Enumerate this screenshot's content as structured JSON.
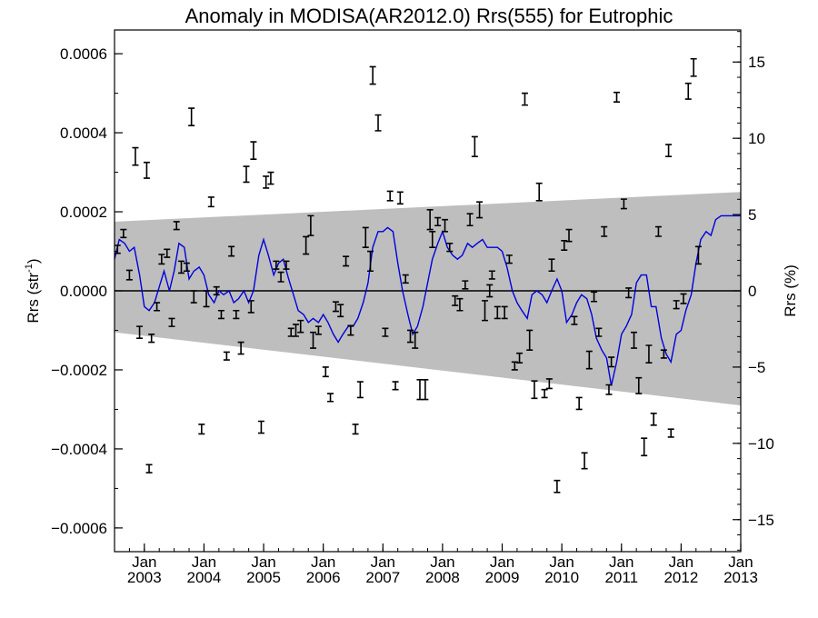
{
  "chart_data": {
    "type": "scatter",
    "title": "Anomaly in MODISA(AR2012.0) Rrs(555) for Eutrophic",
    "ylabel_left_base": "Rrs (str",
    "ylabel_left_sup": "-1",
    "ylabel_left_tail": ")",
    "ylabel_right": "Rrs (%)",
    "xlim": [
      2002.5,
      2013.0
    ],
    "ylim": [
      -0.00066,
      0.00066
    ],
    "ylim_right": [
      -17.1,
      17.1
    ],
    "grid": false,
    "legend": "none",
    "x_tick_labels": [
      {
        "top": "Jan",
        "bottom": "2003",
        "x": 2003.0
      },
      {
        "top": "Jan",
        "bottom": "2004",
        "x": 2004.0
      },
      {
        "top": "Jan",
        "bottom": "2005",
        "x": 2005.0
      },
      {
        "top": "Jan",
        "bottom": "2006",
        "x": 2006.0
      },
      {
        "top": "Jan",
        "bottom": "2007",
        "x": 2007.0
      },
      {
        "top": "Jan",
        "bottom": "2008",
        "x": 2008.0
      },
      {
        "top": "Jan",
        "bottom": "2009",
        "x": 2009.0
      },
      {
        "top": "Jan",
        "bottom": "2010",
        "x": 2010.0
      },
      {
        "top": "Jan",
        "bottom": "2011",
        "x": 2011.0
      },
      {
        "top": "Jan",
        "bottom": "2012",
        "x": 2012.0
      },
      {
        "top": "Jan",
        "bottom": "2013",
        "x": 2013.0
      }
    ],
    "y_tick_labels_left": [
      {
        "label": "0.0006",
        "v": 0.0006
      },
      {
        "label": "0.0004",
        "v": 0.0004
      },
      {
        "label": "0.0002",
        "v": 0.0002
      },
      {
        "label": "0.0000",
        "v": 0.0
      },
      {
        "label": "−0.0002",
        "v": -0.0002
      },
      {
        "label": "−0.0004",
        "v": -0.0004
      },
      {
        "label": "−0.0006",
        "v": -0.0006
      }
    ],
    "y_tick_labels_right": [
      {
        "label": "15",
        "v": 15
      },
      {
        "label": "10",
        "v": 10
      },
      {
        "label": "5",
        "v": 5
      },
      {
        "label": "0",
        "v": 0
      },
      {
        "label": "−5",
        "v": -5
      },
      {
        "label": "−10",
        "v": -10
      },
      {
        "label": "−15",
        "v": -15
      }
    ],
    "band": {
      "x": [
        2002.5,
        2013.0
      ],
      "upper": [
        0.000175,
        0.00025
      ],
      "lower": [
        -0.000105,
        -0.00029
      ],
      "color": "#bebebe"
    },
    "zero_line": 0.0,
    "line_color": "#0000dd",
    "errorbars": [
      [
        2002.55,
        0.000105,
        1e-05
      ],
      [
        2002.65,
        0.000145,
        1e-05
      ],
      [
        2002.75,
        4e-05,
        1.2e-05
      ],
      [
        2002.85,
        0.00034,
        2.2e-05
      ],
      [
        2002.92,
        -0.000105,
        1.5e-05
      ],
      [
        2003.04,
        0.000305,
        2e-05
      ],
      [
        2003.08,
        -0.00045,
        1e-05
      ],
      [
        2003.12,
        -0.00012,
        1e-05
      ],
      [
        2003.21,
        -4e-05,
        1e-05
      ],
      [
        2003.29,
        8e-05,
        1.2e-05
      ],
      [
        2003.38,
        9.5e-05,
        1e-05
      ],
      [
        2003.46,
        -8e-05,
        1e-05
      ],
      [
        2003.54,
        0.000165,
        1e-05
      ],
      [
        2003.62,
        6e-05,
        1.5e-05
      ],
      [
        2003.71,
        6e-05,
        1e-05
      ],
      [
        2003.79,
        0.00044,
        2.2e-05
      ],
      [
        2003.83,
        -1.5e-05,
        1.5e-05
      ],
      [
        2003.96,
        -0.00035,
        1.2e-05
      ],
      [
        2004.04,
        -2e-05,
        2e-05
      ],
      [
        2004.12,
        0.000225,
        1.2e-05
      ],
      [
        2004.21,
        0.0,
        1e-05
      ],
      [
        2004.29,
        -6e-05,
        1e-05
      ],
      [
        2004.38,
        -0.000165,
        1e-05
      ],
      [
        2004.46,
        0.0001,
        1.2e-05
      ],
      [
        2004.54,
        -6e-05,
        1e-05
      ],
      [
        2004.62,
        -0.000145,
        1.5e-05
      ],
      [
        2004.71,
        0.000295,
        2e-05
      ],
      [
        2004.79,
        -4e-05,
        1.5e-05
      ],
      [
        2004.83,
        0.000355,
        2.2e-05
      ],
      [
        2004.96,
        -0.000345,
        1.5e-05
      ],
      [
        2005.04,
        0.000275,
        1.5e-05
      ],
      [
        2005.12,
        0.000285,
        1.5e-05
      ],
      [
        2005.21,
        6.5e-05,
        1e-05
      ],
      [
        2005.29,
        3.5e-05,
        1.2e-05
      ],
      [
        2005.38,
        6.5e-05,
        1e-05
      ],
      [
        2005.46,
        -0.000105,
        1e-05
      ],
      [
        2005.54,
        -0.0001,
        1.5e-05
      ],
      [
        2005.62,
        -9e-05,
        1.5e-05
      ],
      [
        2005.71,
        0.000115,
        2.2e-05
      ],
      [
        2005.79,
        0.000165,
        2.5e-05
      ],
      [
        2005.83,
        -0.000125,
        2e-05
      ],
      [
        2005.92,
        -0.0001,
        1e-05
      ],
      [
        2006.04,
        -0.000205,
        1.2e-05
      ],
      [
        2006.12,
        -0.00027,
        1e-05
      ],
      [
        2006.21,
        -4e-05,
        1.2e-05
      ],
      [
        2006.29,
        -5e-05,
        1.5e-05
      ],
      [
        2006.38,
        7.5e-05,
        1.2e-05
      ],
      [
        2006.46,
        -0.0001,
        1.2e-05
      ],
      [
        2006.54,
        -0.00035,
        1.2e-05
      ],
      [
        2006.62,
        -0.00025,
        2e-05
      ],
      [
        2006.71,
        0.000135,
        2.5e-05
      ],
      [
        2006.79,
        7.5e-05,
        2.5e-05
      ],
      [
        2006.83,
        0.000545,
        2.2e-05
      ],
      [
        2006.92,
        0.000425,
        2e-05
      ],
      [
        2007.04,
        -0.000105,
        1e-05
      ],
      [
        2007.12,
        0.00024,
        1.2e-05
      ],
      [
        2007.21,
        -0.00024,
        1e-05
      ],
      [
        2007.29,
        0.000235,
        1.5e-05
      ],
      [
        2007.38,
        3e-05,
        1e-05
      ],
      [
        2007.46,
        -0.000115,
        1.5e-05
      ],
      [
        2007.54,
        -0.000125,
        2e-05
      ],
      [
        2007.62,
        -0.00025,
        2.5e-05
      ],
      [
        2007.71,
        -0.00025,
        2.5e-05
      ],
      [
        2007.79,
        0.00018,
        2.5e-05
      ],
      [
        2007.83,
        0.00013,
        2e-05
      ],
      [
        2007.92,
        0.000175,
        1e-05
      ],
      [
        2008.04,
        0.000165,
        1.5e-05
      ],
      [
        2008.12,
        0.00011,
        1e-05
      ],
      [
        2008.21,
        -2.5e-05,
        1.2e-05
      ],
      [
        2008.29,
        -3.5e-05,
        1.5e-05
      ],
      [
        2008.38,
        1.5e-05,
        1e-05
      ],
      [
        2008.46,
        0.00018,
        1.5e-05
      ],
      [
        2008.54,
        0.000365,
        2.5e-05
      ],
      [
        2008.62,
        0.000205,
        2e-05
      ],
      [
        2008.71,
        -5e-05,
        2.5e-05
      ],
      [
        2008.79,
        0.0,
        1.5e-05
      ],
      [
        2008.83,
        4e-05,
        1e-05
      ],
      [
        2008.92,
        -5.5e-05,
        1.5e-05
      ],
      [
        2009.04,
        -5.5e-05,
        1.5e-05
      ],
      [
        2009.12,
        8e-05,
        1e-05
      ],
      [
        2009.21,
        -0.00019,
        1e-05
      ],
      [
        2009.29,
        -0.00017,
        1.2e-05
      ],
      [
        2009.38,
        0.000485,
        1.5e-05
      ],
      [
        2009.46,
        -0.000125,
        2.5e-05
      ],
      [
        2009.54,
        -0.00025,
        2.2e-05
      ],
      [
        2009.62,
        0.00025,
        2.2e-05
      ],
      [
        2009.71,
        -0.00026,
        1e-05
      ],
      [
        2009.79,
        -0.000235,
        1.2e-05
      ],
      [
        2009.83,
        6.5e-05,
        1.5e-05
      ],
      [
        2009.92,
        -0.000495,
        1.5e-05
      ],
      [
        2010.04,
        0.000115,
        1.2e-05
      ],
      [
        2010.12,
        0.00014,
        1.5e-05
      ],
      [
        2010.21,
        -7.5e-05,
        1e-05
      ],
      [
        2010.29,
        -0.000285,
        1.5e-05
      ],
      [
        2010.38,
        -0.00043,
        2e-05
      ],
      [
        2010.46,
        -0.000175,
        2.2e-05
      ],
      [
        2010.54,
        -1.5e-05,
        1.2e-05
      ],
      [
        2010.62,
        -0.000105,
        1e-05
      ],
      [
        2010.71,
        0.00015,
        1.2e-05
      ],
      [
        2010.79,
        -0.00025,
        1.2e-05
      ],
      [
        2010.83,
        -0.00018,
        1.2e-05
      ],
      [
        2010.92,
        0.00049,
        1.2e-05
      ],
      [
        2011.04,
        0.00022,
        1.2e-05
      ],
      [
        2011.12,
        -5e-06,
        1.2e-05
      ],
      [
        2011.21,
        -0.000125,
        2e-05
      ],
      [
        2011.29,
        -0.00024,
        2e-05
      ],
      [
        2011.38,
        -0.000395,
        2.2e-05
      ],
      [
        2011.46,
        -0.00016,
        2.2e-05
      ],
      [
        2011.54,
        -0.000325,
        1.5e-05
      ],
      [
        2011.62,
        0.00015,
        1.2e-05
      ],
      [
        2011.71,
        -0.00016,
        1e-05
      ],
      [
        2011.79,
        0.000355,
        1.5e-05
      ],
      [
        2011.83,
        -0.00036,
        1e-05
      ],
      [
        2011.92,
        -3.5e-05,
        1e-05
      ],
      [
        2012.04,
        -2e-05,
        1.2e-05
      ],
      [
        2012.12,
        0.000505,
        2e-05
      ],
      [
        2012.21,
        0.000565,
        2.2e-05
      ],
      [
        2012.29,
        9e-05,
        2.2e-05
      ]
    ],
    "line_series": {
      "name": "",
      "x": [
        2002.5,
        2002.58,
        2002.67,
        2002.75,
        2002.83,
        2002.92,
        2003.0,
        2003.08,
        2003.17,
        2003.25,
        2003.33,
        2003.42,
        2003.5,
        2003.58,
        2003.67,
        2003.75,
        2003.83,
        2003.92,
        2004.0,
        2004.08,
        2004.17,
        2004.25,
        2004.33,
        2004.42,
        2004.5,
        2004.58,
        2004.67,
        2004.75,
        2004.83,
        2004.92,
        2005.0,
        2005.08,
        2005.17,
        2005.25,
        2005.33,
        2005.42,
        2005.5,
        2005.58,
        2005.67,
        2005.75,
        2005.83,
        2005.92,
        2006.0,
        2006.08,
        2006.17,
        2006.25,
        2006.33,
        2006.42,
        2006.5,
        2006.58,
        2006.67,
        2006.75,
        2006.83,
        2006.92,
        2007.0,
        2007.08,
        2007.17,
        2007.25,
        2007.33,
        2007.42,
        2007.5,
        2007.58,
        2007.67,
        2007.75,
        2007.83,
        2007.92,
        2008.0,
        2008.08,
        2008.17,
        2008.25,
        2008.33,
        2008.42,
        2008.5,
        2008.58,
        2008.67,
        2008.75,
        2008.83,
        2008.92,
        2009.0,
        2009.08,
        2009.17,
        2009.25,
        2009.33,
        2009.42,
        2009.5,
        2009.58,
        2009.67,
        2009.75,
        2009.83,
        2009.92,
        2010.0,
        2010.08,
        2010.17,
        2010.25,
        2010.33,
        2010.42,
        2010.5,
        2010.58,
        2010.67,
        2010.75,
        2010.83,
        2010.92,
        2011.0,
        2011.08,
        2011.17,
        2011.25,
        2011.33,
        2011.42,
        2011.5,
        2011.58,
        2011.67,
        2011.75,
        2011.83,
        2011.92,
        2012.0,
        2012.08,
        2012.17,
        2012.25,
        2012.33,
        2012.42,
        2012.5,
        2012.58,
        2012.67,
        2012.75,
        2012.83,
        2012.92,
        2013.0
      ],
      "y": [
        8e-05,
        0.00013,
        0.00012,
        0.0001,
        0.00011,
        4e-05,
        -4e-05,
        -5e-05,
        -3e-05,
        1e-05,
        5e-05,
        0.0,
        5e-05,
        0.00012,
        0.00011,
        3e-05,
        5e-05,
        6e-05,
        4e-05,
        -1e-05,
        -3e-05,
        0.0,
        -1e-05,
        0.0,
        -3e-05,
        -2e-05,
        0.0,
        -3e-05,
        0.0,
        9e-05,
        0.00013,
        9e-05,
        4e-05,
        7e-05,
        8e-05,
        3e-05,
        -1e-05,
        -5e-05,
        -6e-05,
        -8e-05,
        -7e-05,
        -8e-05,
        -6e-05,
        -8e-05,
        -0.00011,
        -0.00013,
        -0.00011,
        -9e-05,
        -9e-05,
        -7e-05,
        -3e-05,
        2e-05,
        0.00011,
        0.00015,
        0.00015,
        0.00016,
        0.00015,
        7e-05,
        0.0,
        -6e-05,
        -0.00011,
        -9e-05,
        -4e-05,
        2e-05,
        8e-05,
        0.00012,
        0.00015,
        0.00011,
        9e-05,
        8e-05,
        9e-05,
        0.00012,
        0.00011,
        0.00012,
        0.00013,
        0.00011,
        0.00011,
        0.00011,
        0.0001,
        6e-05,
        0.0,
        -3e-05,
        -5e-05,
        -7e-05,
        -1e-05,
        0.0,
        -1e-05,
        -3e-05,
        0.0,
        3e-05,
        0.0,
        -8e-05,
        -6e-05,
        -3e-05,
        -1e-05,
        -2e-05,
        -6e-05,
        -0.00012,
        -0.00015,
        -0.00017,
        -0.00024,
        -0.00018,
        -0.00011,
        -9e-05,
        -6e-05,
        2e-05,
        4e-05,
        4e-05,
        -4e-05,
        -4e-05,
        -0.00012,
        -0.00016,
        -0.00018,
        -0.00011,
        -0.0001,
        -5e-05,
        -1e-05,
        7e-05,
        0.00013,
        0.00015,
        0.00014,
        0.00018,
        0.00019,
        0.00019,
        0.00019,
        0.00019,
        0.00019
      ]
    }
  }
}
